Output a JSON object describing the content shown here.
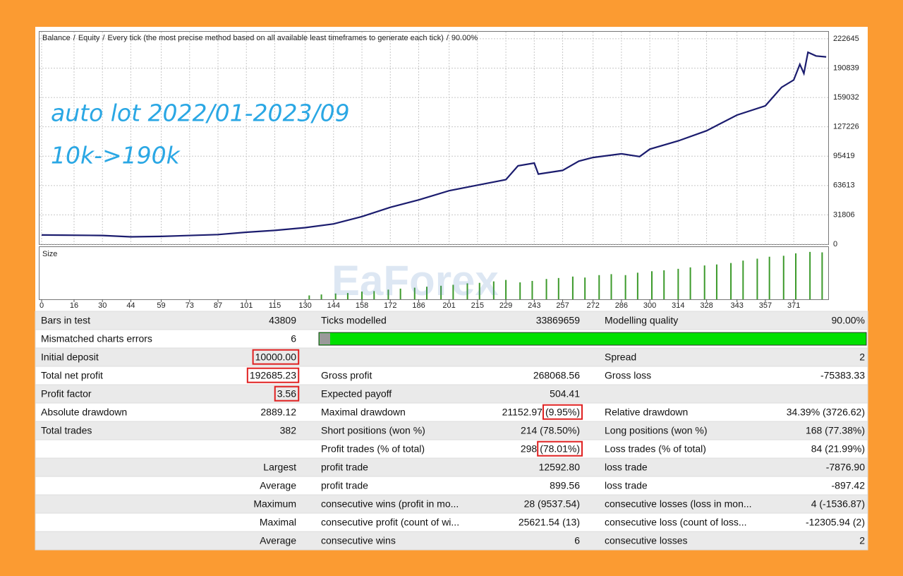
{
  "chart_data": {
    "type": "line",
    "separator": "/",
    "equity_label": "Equity",
    "equity_color": "#2e9b2e",
    "description": "Every tick (the most precise method based on all available least timeframes to generate each tick)",
    "quality": "90.00%",
    "annotations": [
      "auto lot 2022/01-2023/09",
      "10k->190k"
    ],
    "watermark": "EaForex",
    "size_label": "Size",
    "x": [
      0,
      30,
      44,
      59,
      87,
      101,
      115,
      130,
      144,
      158,
      172,
      186,
      201,
      215,
      229,
      235,
      243,
      245,
      257,
      265,
      272,
      286,
      295,
      300,
      314,
      328,
      343,
      357,
      365,
      371,
      374,
      376,
      378,
      382,
      387
    ],
    "series": [
      {
        "name": "Balance",
        "color": "#1b1c6e",
        "values": [
          10000,
          9500,
          8000,
          8500,
          10500,
          13000,
          15000,
          18000,
          22000,
          30000,
          40000,
          48000,
          58000,
          64000,
          70000,
          85000,
          88000,
          76000,
          80000,
          90000,
          94000,
          98000,
          95000,
          103000,
          112000,
          123000,
          140000,
          150000,
          170000,
          178000,
          195000,
          185000,
          208000,
          204000,
          203000
        ]
      }
    ],
    "xlim": [
      0,
      388
    ],
    "ylim": [
      0,
      231000
    ],
    "yticks": [
      0,
      31806,
      63613,
      95419,
      127226,
      159032,
      190839,
      222645
    ],
    "xticks": [
      0,
      16,
      30,
      44,
      59,
      73,
      87,
      101,
      115,
      130,
      144,
      158,
      172,
      186,
      201,
      215,
      229,
      243,
      257,
      272,
      286,
      300,
      314,
      328,
      343,
      357,
      371
    ],
    "grid": true,
    "size": {
      "color": "#3c9a2b",
      "ylim": [
        0,
        1.08
      ],
      "x": [
        132,
        138,
        145,
        151,
        158,
        164,
        171,
        177,
        184,
        190,
        197,
        203,
        210,
        216,
        223,
        229,
        236,
        242,
        249,
        255,
        262,
        268,
        275,
        281,
        288,
        294,
        301,
        307,
        314,
        320,
        327,
        333,
        340,
        346,
        353,
        359,
        366,
        372,
        379,
        385
      ],
      "values": [
        0.08,
        0.1,
        0.12,
        0.13,
        0.16,
        0.17,
        0.2,
        0.22,
        0.24,
        0.26,
        0.28,
        0.3,
        0.33,
        0.34,
        0.37,
        0.4,
        0.35,
        0.38,
        0.42,
        0.44,
        0.47,
        0.45,
        0.5,
        0.52,
        0.5,
        0.55,
        0.58,
        0.6,
        0.63,
        0.66,
        0.7,
        0.72,
        0.75,
        0.8,
        0.84,
        0.88,
        0.9,
        0.95,
        0.98,
        0.97
      ]
    }
  },
  "table": {
    "rows": [
      [
        "Bars in test",
        "43809",
        "Ticks modelled",
        "33869659",
        "Modelling quality",
        "90.00%"
      ],
      [
        "Mismatched charts errors",
        "6",
        null,
        null,
        null,
        null
      ],
      [
        "Initial deposit",
        "10000.00",
        null,
        null,
        "Spread",
        "2"
      ],
      [
        "Total net profit",
        "192685.23",
        "Gross profit",
        "268068.56",
        "Gross loss",
        "-75383.33"
      ],
      [
        "Profit factor",
        "3.56",
        "Expected payoff",
        "504.41",
        null,
        null
      ],
      [
        "Absolute drawdown",
        "2889.12",
        "Maximal drawdown",
        [
          "21152.97",
          "(9.95%)"
        ],
        "Relative drawdown",
        "34.39% (3726.62)"
      ],
      [
        "Total trades",
        "382",
        "Short positions (won %)",
        "214 (78.50%)",
        "Long positions (won %)",
        "168 (77.38%)"
      ],
      [
        null,
        null,
        "Profit trades (% of total)",
        [
          "298",
          "(78.01%)"
        ],
        "Loss trades (% of total)",
        "84 (21.99%)"
      ],
      [
        null,
        "Largest",
        "profit trade",
        "12592.80",
        "loss trade",
        "-7876.90"
      ],
      [
        null,
        "Average",
        "profit trade",
        "899.56",
        "loss trade",
        "-897.42"
      ],
      [
        null,
        "Maximum",
        "consecutive wins (profit in mo...",
        "28 (9537.54)",
        "consecutive losses (loss in mon...",
        "4 (-1536.87)"
      ],
      [
        null,
        "Maximal",
        "consecutive profit (count of wi...",
        "25621.54 (13)",
        "consecutive loss (count of loss...",
        "-12305.94 (2)"
      ],
      [
        null,
        "Average",
        "consecutive wins",
        "6",
        "consecutive losses",
        "2"
      ]
    ]
  }
}
